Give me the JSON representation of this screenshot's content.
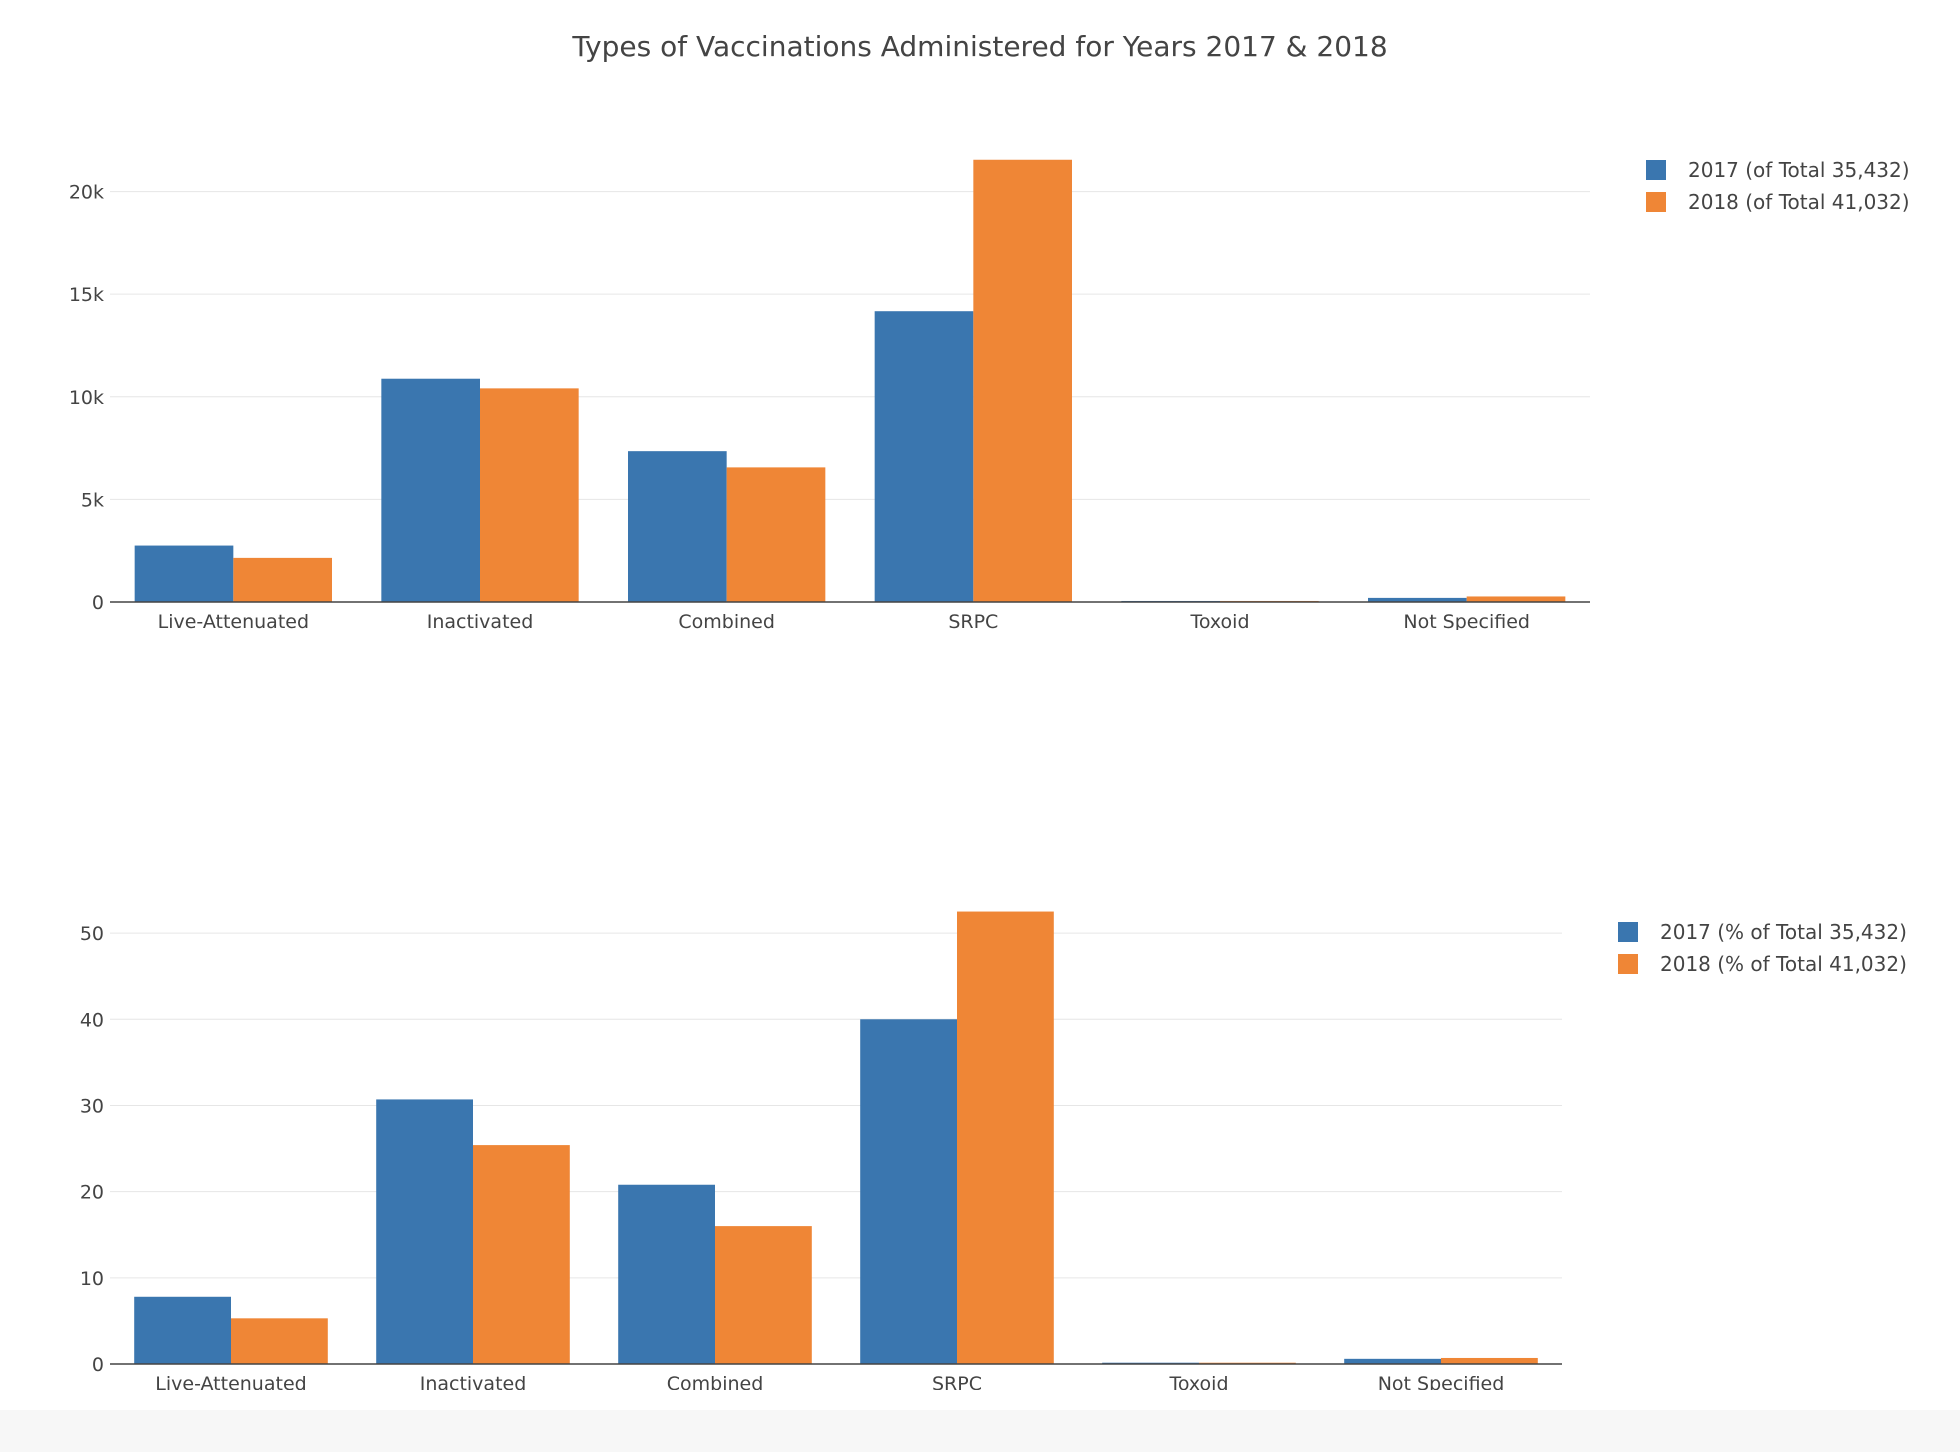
{
  "chart_data": [
    {
      "type": "bar",
      "title": "Types of Vaccinations Administered for Years 2017 & 2018",
      "categories": [
        "Live-Attenuated",
        "Inactivated",
        "Combined",
        "SRPC",
        "Toxoid",
        "Not Specified"
      ],
      "series": [
        {
          "name": "2017 (of Total 35,432)",
          "color": "#3a76af",
          "values": [
            2750,
            10880,
            7350,
            14170,
            50,
            200
          ]
        },
        {
          "name": "2018 (of Total 41,032)",
          "color": "#ef8636",
          "values": [
            2150,
            10410,
            6560,
            21550,
            50,
            270
          ]
        }
      ],
      "yticks": [
        0,
        5000,
        10000,
        15000,
        20000
      ],
      "yticklabels": [
        "0",
        "5k",
        "10k",
        "15k",
        "20k"
      ],
      "ylim": [
        0,
        23000
      ],
      "grid": true,
      "legend": "top-right"
    },
    {
      "type": "bar",
      "categories": [
        "Live-Attenuated",
        "Inactivated",
        "Combined",
        "SRPC",
        "Toxoid",
        "Not Specified"
      ],
      "series": [
        {
          "name": "2017 (% of Total 35,432)",
          "color": "#3a76af",
          "values": [
            7.8,
            30.7,
            20.8,
            40.0,
            0.15,
            0.6
          ]
        },
        {
          "name": "2018 (% of Total 41,032)",
          "color": "#ef8636",
          "values": [
            5.3,
            25.4,
            16.0,
            52.5,
            0.15,
            0.7
          ]
        }
      ],
      "yticks": [
        0,
        10,
        20,
        30,
        40,
        50
      ],
      "yticklabels": [
        "0",
        "10",
        "20",
        "30",
        "40",
        "50"
      ],
      "ylim": [
        0,
        55
      ],
      "grid": true,
      "legend": "top-right"
    }
  ]
}
